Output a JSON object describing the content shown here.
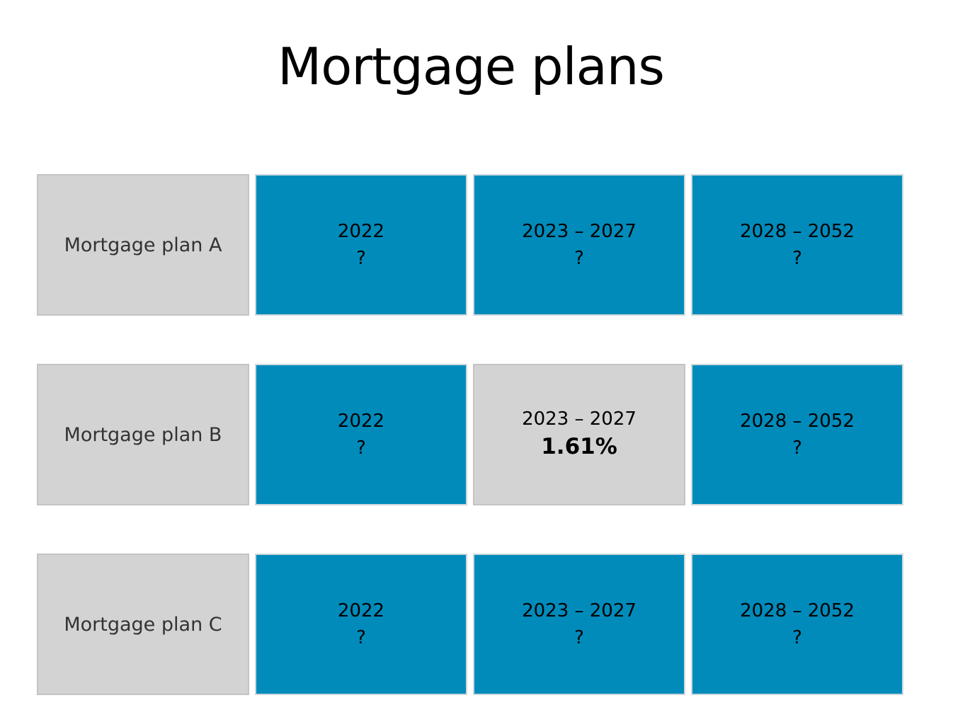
{
  "title": "Mortgage plans",
  "plans": [
    {
      "label": "Mortgage plan A",
      "periods": [
        {
          "range": "2022",
          "rate": "?"
        },
        {
          "range": "2023 – 2027",
          "rate": "?"
        },
        {
          "range": "2028 – 2052",
          "rate": "?"
        }
      ]
    },
    {
      "label": "Mortgage plan B",
      "periods": [
        {
          "range": "2022",
          "rate": "?"
        },
        {
          "range": "2023 – 2027",
          "rate": "1.61%"
        },
        {
          "range": "2028 – 2052",
          "rate": "?"
        }
      ]
    },
    {
      "label": "Mortgage plan C",
      "periods": [
        {
          "range": "2022",
          "rate": "?"
        },
        {
          "range": "2023 – 2027",
          "rate": "?"
        },
        {
          "range": "2028 – 2052",
          "rate": "?"
        }
      ]
    }
  ],
  "colors": {
    "hidden_tile": "#008bbb",
    "revealed_tile": "#d3d3d3",
    "label_tile": "#d3d3d3"
  }
}
